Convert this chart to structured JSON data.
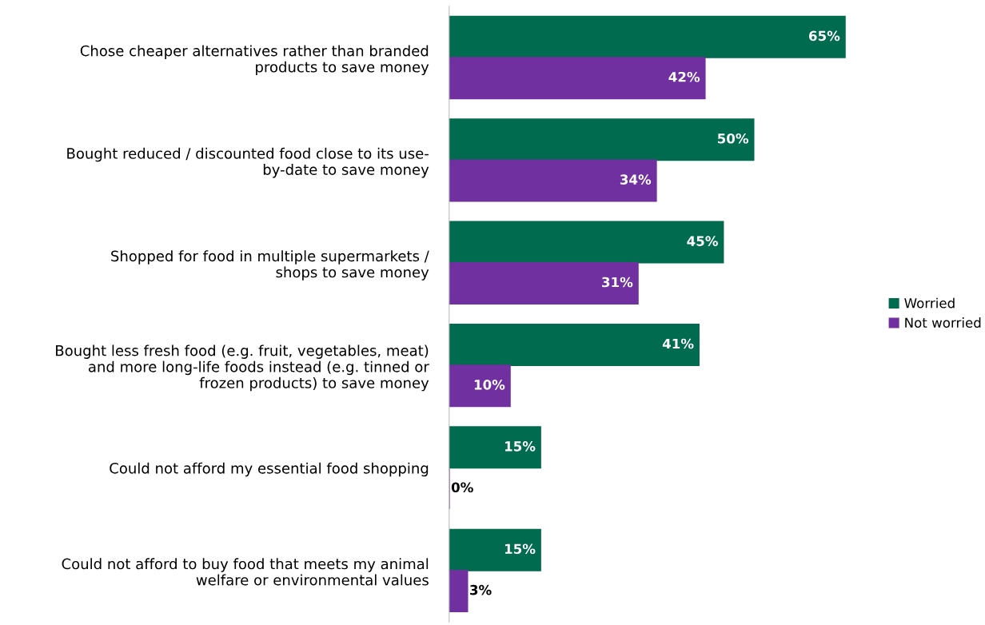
{
  "chart_data": {
    "type": "bar",
    "orientation": "horizontal",
    "legend": "right",
    "categories": [
      "Chose cheaper alternatives rather than branded\nproducts to save money",
      "Bought reduced / discounted food close to its use-\nby-date to save money",
      "Shopped for food in multiple supermarkets /\nshops to save money",
      "Bought less fresh food (e.g. fruit, vegetables, meat)\nand more long-life foods instead (e.g. tinned or\nfrozen products) to save money",
      "Could not afford my essential food shopping",
      "Could not afford to buy food that meets my animal\nwelfare or environmental values"
    ],
    "series": [
      {
        "name": "Worried",
        "color": "#006b4f",
        "values": [
          65,
          50,
          45,
          41,
          15,
          15
        ],
        "value_labels": [
          "65%",
          "50%",
          "45%",
          "41%",
          "15%",
          "15%"
        ]
      },
      {
        "name": "Not worried",
        "color": "#7030a0",
        "values": [
          42,
          34,
          31,
          10,
          0,
          3
        ],
        "value_labels": [
          "42%",
          "34%",
          "31%",
          "10%",
          "0%",
          "3%"
        ]
      }
    ]
  }
}
